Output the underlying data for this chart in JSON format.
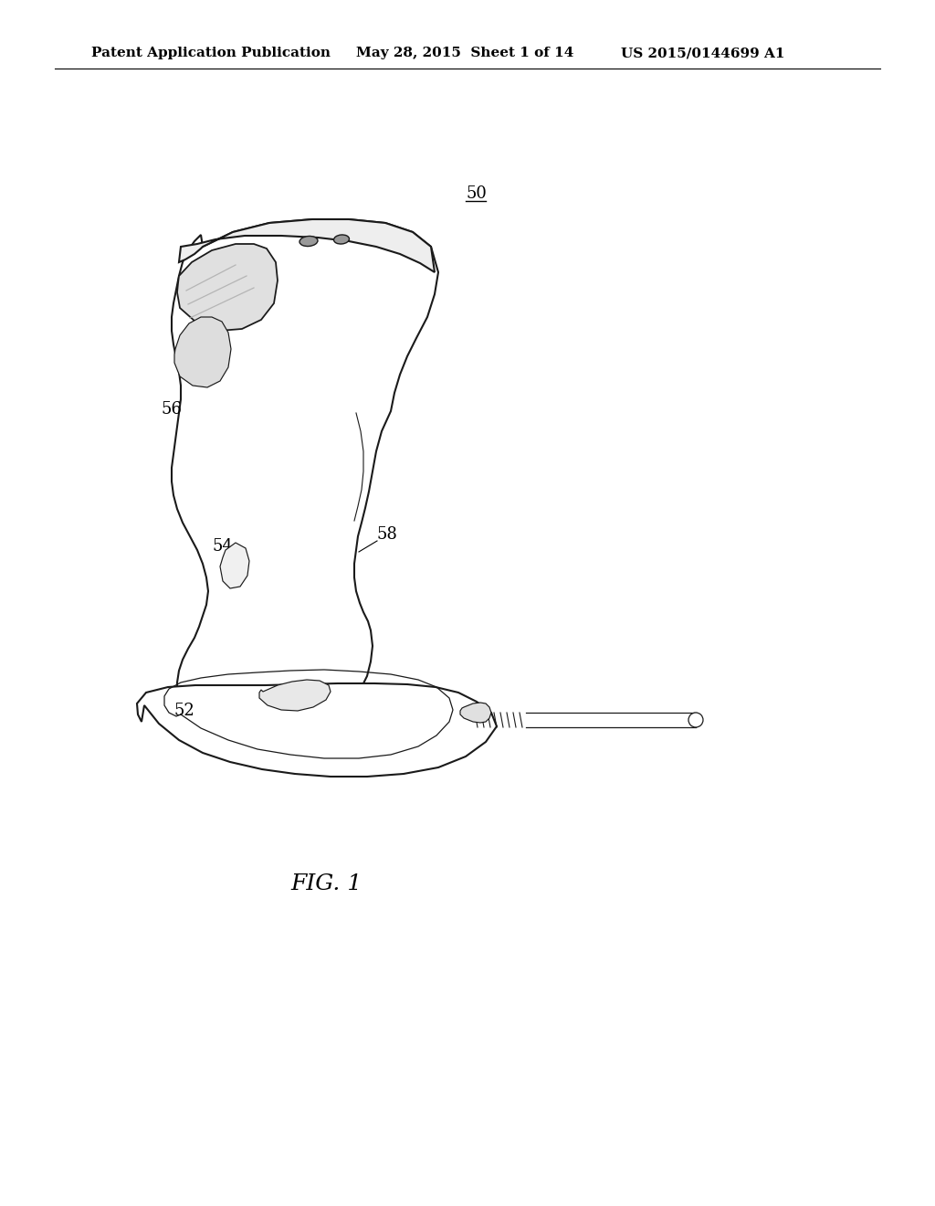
{
  "background_color": "#ffffff",
  "header_left": "Patent Application Publication",
  "header_center": "May 28, 2015  Sheet 1 of 14",
  "header_right": "US 2015/0144699 A1",
  "figure_label": "FIG. 1",
  "ref_50": "50",
  "ref_52": "52",
  "ref_54": "54",
  "ref_56": "56",
  "ref_58": "58",
  "line_color": "#1a1a1a",
  "line_width": 1.5,
  "header_fontsize": 11,
  "ref_fontsize": 13,
  "fig_label_fontsize": 18
}
